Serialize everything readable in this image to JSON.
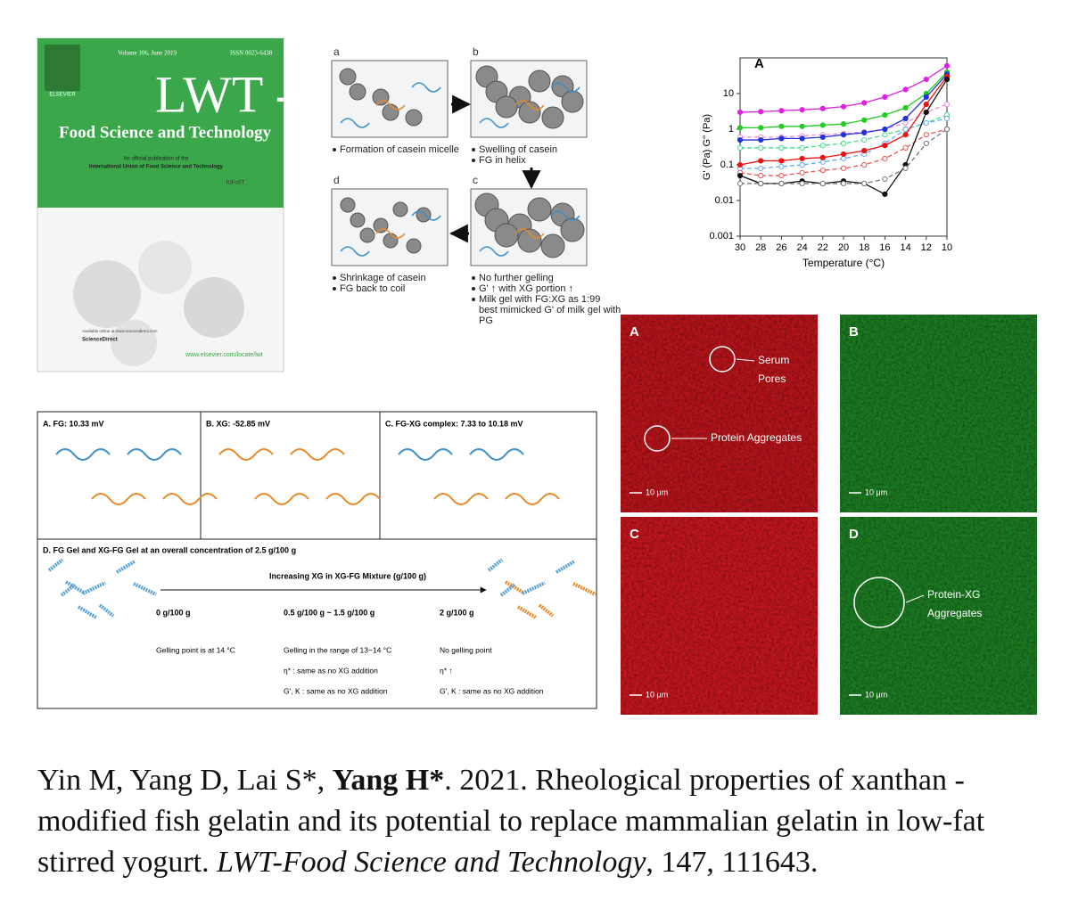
{
  "cover": {
    "volume": "Volume 106, June 2019",
    "issn": "ISSN 0023-6438",
    "publisher": "ELSEVIER",
    "title": "LWT -",
    "subtitle": "Food Science and Technology",
    "official": "An official publication of the",
    "union": "International Union of Food Science and Technology",
    "union_logo": "IUFoST",
    "available": "Available online at www.sciencedirect.com",
    "platform": "ScienceDirect",
    "url": "www.elsevier.com/locate/lwt"
  },
  "schematic": {
    "panels": [
      {
        "label": "a",
        "notes": [
          [
            "Formation of casein micelle"
          ]
        ]
      },
      {
        "label": "b",
        "notes": [
          [
            "Swelling of casein"
          ],
          [
            "FG in helix"
          ]
        ]
      },
      {
        "label": "c",
        "notes": [
          [
            "No further gelling"
          ],
          [
            "G' ↑ with XG portion ↑"
          ],
          [
            "Milk gel with FG:XG as 1:99",
            "best mimicked G' of milk gel with",
            "PG"
          ]
        ]
      },
      {
        "label": "d",
        "notes": [
          [
            "Shrinkage of casein"
          ],
          [
            "FG back to coil"
          ]
        ]
      }
    ]
  },
  "chart_data": {
    "type": "line",
    "title": "A",
    "x_label": "Temperature (°C)",
    "y_label": "G' (Pa) G'' (Pa)",
    "log_y": true,
    "x": [
      30,
      28,
      26,
      24,
      22,
      20,
      18,
      16,
      14,
      12,
      10
    ],
    "xlim": [
      30,
      10
    ],
    "xticks": [
      30,
      28,
      26,
      24,
      22,
      20,
      18,
      16,
      14,
      12,
      10
    ],
    "ylim": [
      0.001,
      100
    ],
    "yticks": [
      0.001,
      0.01,
      0.1,
      1,
      10
    ],
    "series": [
      {
        "color": "#e020e0",
        "dashed": false,
        "values": [
          3,
          3.1,
          3.3,
          3.5,
          3.8,
          4.3,
          5.5,
          8,
          13,
          25,
          60
        ]
      },
      {
        "color": "#f08ad0",
        "dashed": true,
        "values": [
          0.6,
          0.6,
          0.6,
          0.65,
          0.7,
          0.75,
          0.85,
          1,
          1.5,
          3,
          5
        ]
      },
      {
        "color": "#22cc22",
        "dashed": false,
        "values": [
          1.1,
          1.1,
          1.2,
          1.2,
          1.3,
          1.4,
          1.8,
          2.5,
          4,
          10,
          40
        ]
      },
      {
        "color": "#44dd88",
        "dashed": true,
        "values": [
          0.3,
          0.3,
          0.3,
          0.3,
          0.35,
          0.4,
          0.5,
          0.7,
          1,
          1.5,
          2.5
        ]
      },
      {
        "color": "#2233dd",
        "dashed": false,
        "values": [
          0.5,
          0.5,
          0.55,
          0.55,
          0.6,
          0.7,
          0.8,
          1,
          2,
          8,
          35
        ]
      },
      {
        "color": "#66aaee",
        "dashed": true,
        "values": [
          0.08,
          0.08,
          0.09,
          0.1,
          0.12,
          0.15,
          0.2,
          0.4,
          1,
          1.5,
          2
        ]
      },
      {
        "color": "#ee1111",
        "dashed": false,
        "values": [
          0.1,
          0.13,
          0.13,
          0.15,
          0.16,
          0.2,
          0.25,
          0.35,
          0.7,
          5,
          30
        ]
      },
      {
        "color": "#ee5555",
        "dashed": true,
        "values": [
          0.06,
          0.05,
          0.05,
          0.06,
          0.07,
          0.08,
          0.1,
          0.15,
          0.3,
          0.7,
          1
        ]
      },
      {
        "color": "#111111",
        "dashed": false,
        "values": [
          0.05,
          0.03,
          0.03,
          0.035,
          0.03,
          0.035,
          0.03,
          0.015,
          0.1,
          3,
          25
        ]
      },
      {
        "color": "#777777",
        "dashed": true,
        "values": [
          0.03,
          0.03,
          0.03,
          0.03,
          0.03,
          0.03,
          0.03,
          0.04,
          0.08,
          0.4,
          1
        ]
      }
    ]
  },
  "mechanism": {
    "panels": [
      {
        "title": "A. FG: 10.33 mV"
      },
      {
        "title": "B. XG: -52.85 mV"
      },
      {
        "title": "C. FG-XG complex: 7.33 to 10.18 mV"
      }
    ],
    "gel": {
      "title": "D. FG Gel and XG-FG Gel at an overall concentration of 2.5 g/100 g",
      "arrow": "Increasing XG in XG-FG Mixture (g/100 g)",
      "columns": [
        {
          "head": "0 g/100 g",
          "lines": [
            "Gelling point is at 14 °C"
          ]
        },
        {
          "head": "0.5 g/100 g ~ 1.5 g/100 g",
          "lines": [
            "Gelling in the range of 13~14 °C",
            "η* : same as no XG addition",
            "G', K : same as no XG addition"
          ]
        },
        {
          "head": "2 g/100 g",
          "lines": [
            "No gelling point",
            "η* ↑",
            "G', K : same as no XG addition"
          ]
        }
      ]
    }
  },
  "micrographs": [
    {
      "label": "A",
      "color": "#b5141a",
      "scale_bar": "10 μm",
      "annotations": [
        {
          "lines": [
            "Serum",
            "Pores"
          ]
        },
        {
          "lines": [
            "Protein Aggregates"
          ]
        }
      ]
    },
    {
      "label": "B",
      "color": "#1c7a22",
      "scale_bar": "10 μm",
      "annotations": []
    },
    {
      "label": "C",
      "color": "#c0161c",
      "scale_bar": "10 μm",
      "annotations": []
    },
    {
      "label": "D",
      "color": "#1c7a22",
      "scale_bar": "10 μm",
      "annotations": [
        {
          "lines": [
            "Protein-XG",
            "Aggregates"
          ]
        }
      ]
    }
  ],
  "citation": [
    {
      "text": "Yin M, Yang D, Lai S*, ",
      "style": "normal"
    },
    {
      "text": "Yang H*",
      "style": "bold"
    },
    {
      "text": ". 2021. Rheological properties of xanthan -modified fish gelatin and its potential to replace mammalian gelatin in low-fat stirred yogurt. ",
      "style": "normal"
    },
    {
      "text": "LWT-Food Science and Technology",
      "style": "italic"
    },
    {
      "text": ", 147, 111643.",
      "style": "normal"
    }
  ]
}
